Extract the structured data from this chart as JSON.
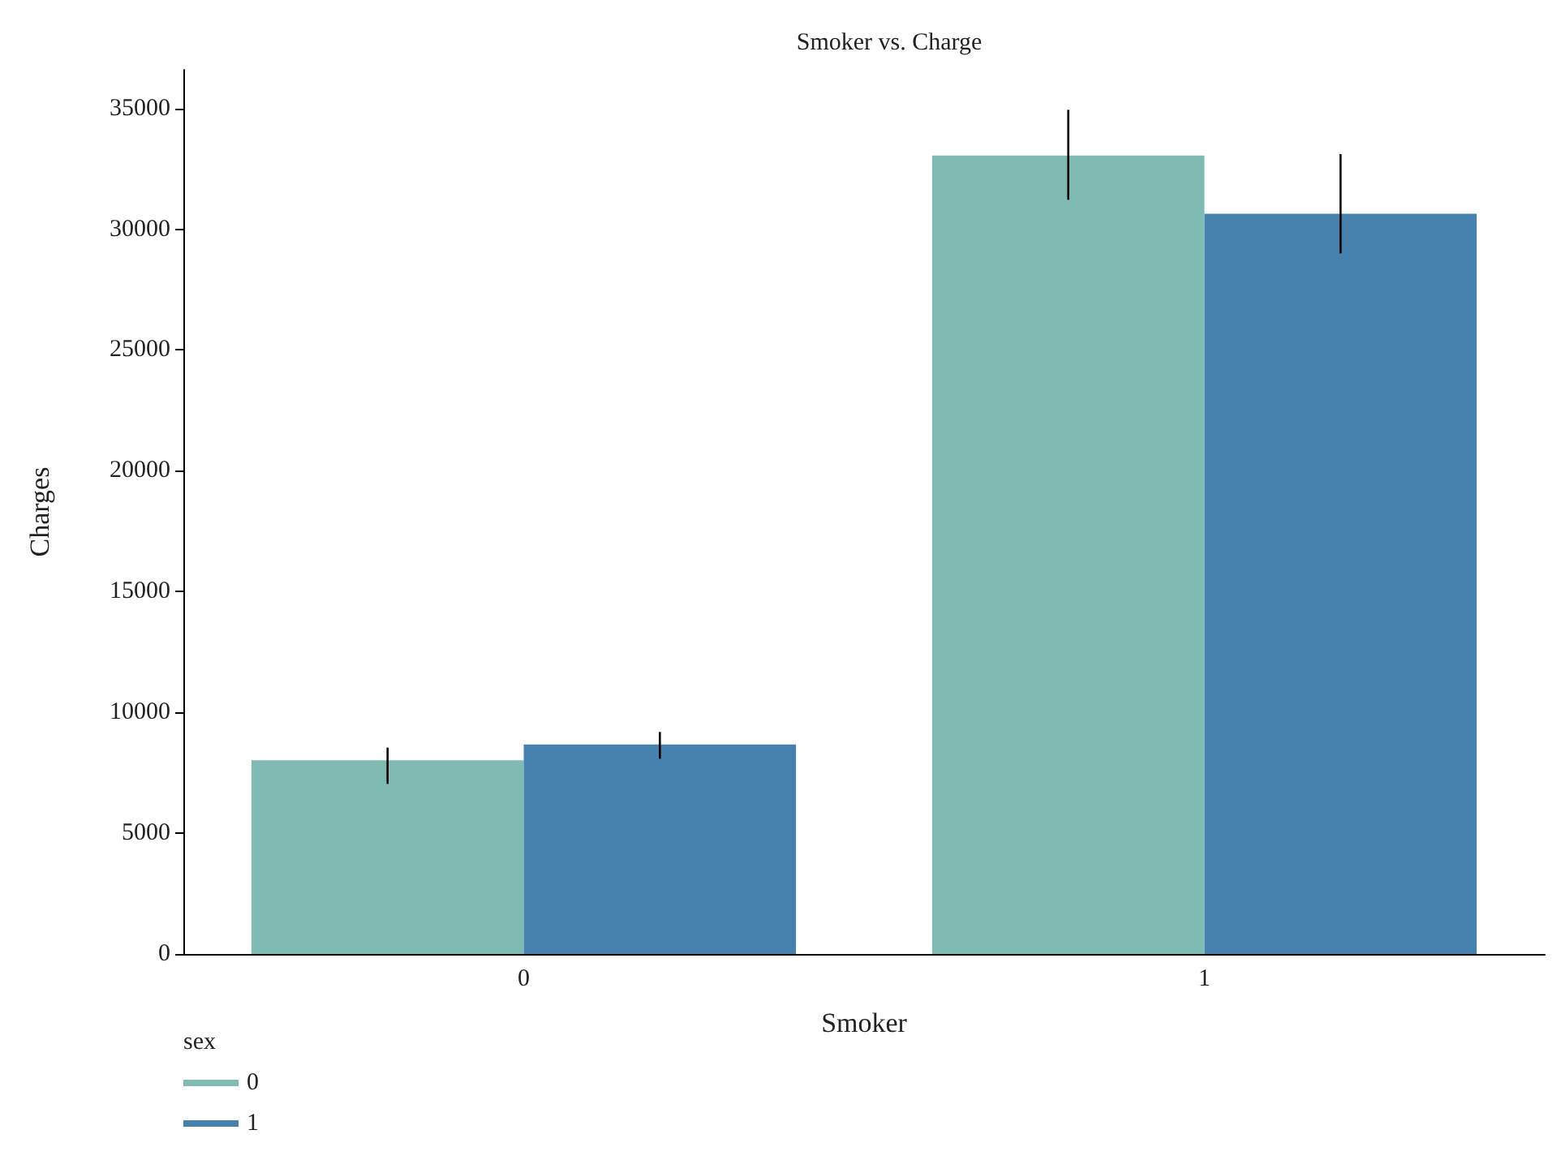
{
  "chart_data": {
    "type": "bar",
    "title": "Smoker vs. Charge",
    "xlabel": "Smoker",
    "ylabel": "Charges",
    "legend_title": "sex",
    "categories": [
      "0",
      "1"
    ],
    "series": [
      {
        "name": "0",
        "color": "#7fbab3",
        "values": [
          8020,
          33050
        ],
        "errors": [
          [
            7040,
            8540
          ],
          [
            31220,
            34940
          ]
        ]
      },
      {
        "name": "1",
        "color": "#4781ae",
        "values": [
          8670,
          30640
        ],
        "errors": [
          [
            8080,
            9190
          ],
          [
            29000,
            33110
          ]
        ]
      }
    ],
    "ylim": [
      0,
      36600
    ],
    "yticks": [
      0,
      5000,
      10000,
      15000,
      20000,
      25000,
      30000,
      35000
    ],
    "grid": false,
    "legend": "bottom left"
  }
}
